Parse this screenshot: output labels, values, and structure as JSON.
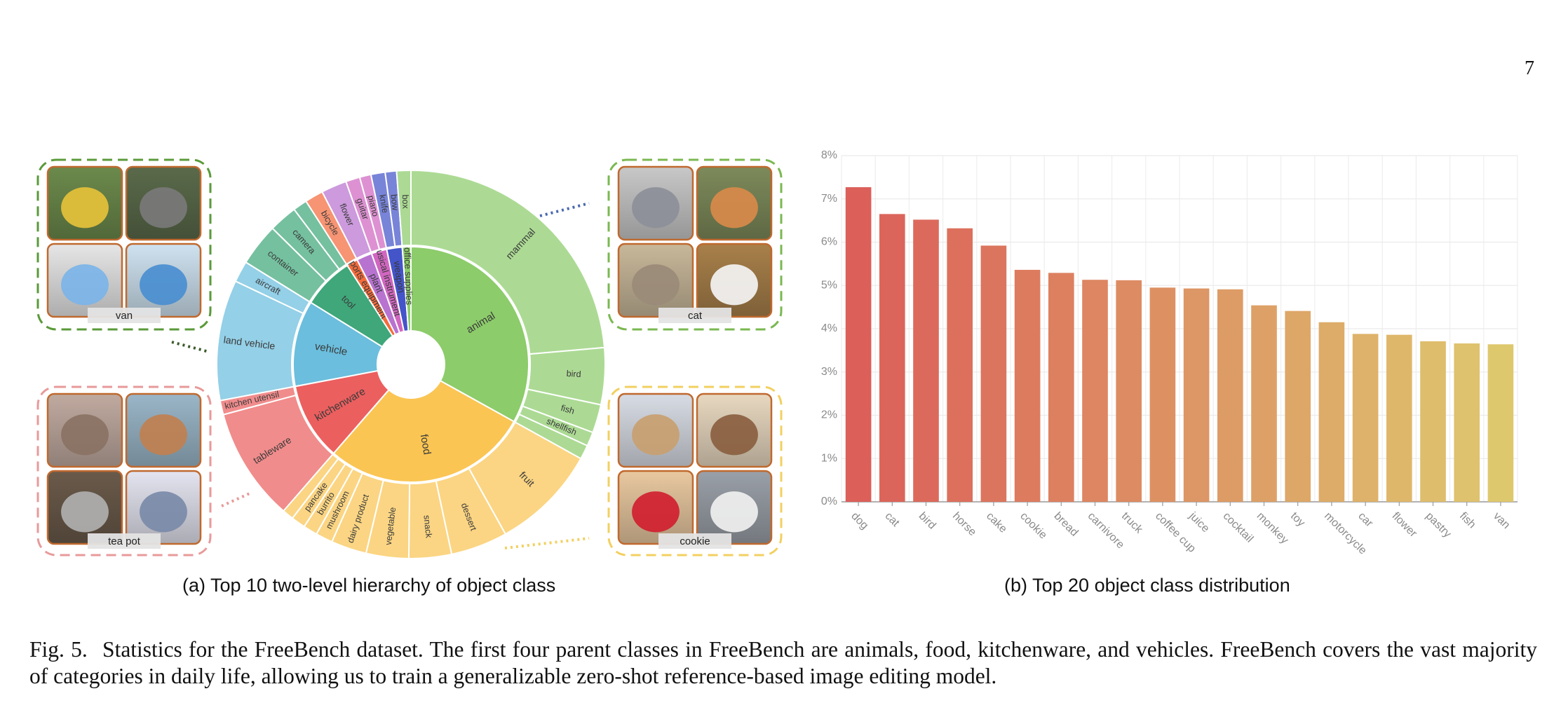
{
  "page_number": "7",
  "caption_a": "(a) Top 10 two-level hierarchy of object class",
  "caption_b": "(b) Top 20 object class distribution",
  "figure_caption": {
    "label": "Fig. 5.",
    "text": "Statistics for the FreeBench dataset. The first four parent classes in FreeBench are animals, food, kitchenware, and vehicles. FreeBench covers the vast majority of categories in daily life, allowing us to train a generalizable zero-shot reference-based image editing model."
  },
  "image_groups": [
    {
      "label": "van",
      "border_color": "#5a9a3a"
    },
    {
      "label": "cat",
      "border_color": "#7ab850"
    },
    {
      "label": "tea pot",
      "border_color": "#e89a9a"
    },
    {
      "label": "cookie",
      "border_color": "#f2d060"
    }
  ],
  "chart_data": [
    {
      "type": "sunburst",
      "title": "",
      "inner": [
        {
          "name": "animal",
          "value": 28,
          "color": "#8ccc6a"
        },
        {
          "name": "food",
          "value": 24,
          "color": "#fac553"
        },
        {
          "name": "kitchenware",
          "value": 9,
          "color": "#ec5f5f"
        },
        {
          "name": "vehicle",
          "value": 10,
          "color": "#6bbedd"
        },
        {
          "name": "tool",
          "value": 6,
          "color": "#3fa77a"
        },
        {
          "name": "sports equipment",
          "value": 1.3,
          "color": "#f46b3c"
        },
        {
          "name": "plant",
          "value": 1.8,
          "color": "#b873d0"
        },
        {
          "name": "musical instrument",
          "value": 1.8,
          "color": "#d066c0"
        },
        {
          "name": "weapon",
          "value": 1.8,
          "color": "#4454c9"
        },
        {
          "name": "office supplies",
          "value": 1.0,
          "color": "#8ccc6a"
        }
      ],
      "outer": [
        {
          "name": "mammal",
          "parent": "animal",
          "value": 20
        },
        {
          "name": "bird",
          "parent": "animal",
          "value": 4
        },
        {
          "name": "fish",
          "parent": "animal",
          "value": 2
        },
        {
          "name": "shellfish",
          "parent": "animal",
          "value": 1
        },
        {
          "name": "",
          "parent": "animal",
          "value": 1
        },
        {
          "name": "fruit",
          "parent": "food",
          "value": 7.5
        },
        {
          "name": "dessert",
          "parent": "food",
          "value": 4
        },
        {
          "name": "snack",
          "parent": "food",
          "value": 3
        },
        {
          "name": "vegetable",
          "parent": "food",
          "value": 3
        },
        {
          "name": "dairy product",
          "parent": "food",
          "value": 2.5
        },
        {
          "name": "mushroom",
          "parent": "food",
          "value": 1.2
        },
        {
          "name": "burrito",
          "parent": "food",
          "value": 1
        },
        {
          "name": "pancake",
          "parent": "food",
          "value": 1
        },
        {
          "name": "",
          "parent": "food",
          "value": 0.8
        },
        {
          "name": "tableware",
          "parent": "kitchenware",
          "value": 8
        },
        {
          "name": "kitchen utensil",
          "parent": "kitchenware",
          "value": 1
        },
        {
          "name": "land vehicle",
          "parent": "vehicle",
          "value": 8.5
        },
        {
          "name": "aircraft",
          "parent": "vehicle",
          "value": 1.5
        },
        {
          "name": "container",
          "parent": "tool",
          "value": 3
        },
        {
          "name": "camera",
          "parent": "tool",
          "value": 2
        },
        {
          "name": "",
          "parent": "tool",
          "value": 1
        },
        {
          "name": "bicycle",
          "parent": "sports equipment",
          "value": 1.3
        },
        {
          "name": "flower",
          "parent": "plant",
          "value": 1.8
        },
        {
          "name": "guitar",
          "parent": "musical instrument",
          "value": 1.0
        },
        {
          "name": "piano",
          "parent": "musical instrument",
          "value": 0.8
        },
        {
          "name": "knife",
          "parent": "weapon",
          "value": 1.0
        },
        {
          "name": "bow",
          "parent": "weapon",
          "value": 0.8
        },
        {
          "name": "box",
          "parent": "office supplies",
          "value": 1.0
        }
      ]
    },
    {
      "type": "bar",
      "title": "",
      "xlabel": "",
      "ylabel": "",
      "categories": [
        "dog",
        "cat",
        "bird",
        "horse",
        "cake",
        "cookie",
        "bread",
        "carnivore",
        "truck",
        "coffee cup",
        "juice",
        "cocktail",
        "monkey",
        "toy",
        "motorcycle",
        "car",
        "flower",
        "pastry",
        "fish",
        "van"
      ],
      "values": [
        7.27,
        6.65,
        6.52,
        6.32,
        5.92,
        5.36,
        5.29,
        5.13,
        5.12,
        4.95,
        4.93,
        4.91,
        4.54,
        4.41,
        4.15,
        3.88,
        3.86,
        3.71,
        3.66,
        3.64
      ],
      "yticks": [
        "0%",
        "1%",
        "2%",
        "3%",
        "4%",
        "5%",
        "6%",
        "7%",
        "8%"
      ],
      "ylim": [
        0,
        8
      ],
      "grid": true,
      "color_start": "#dc5f5a",
      "color_end": "#dec86e"
    }
  ]
}
